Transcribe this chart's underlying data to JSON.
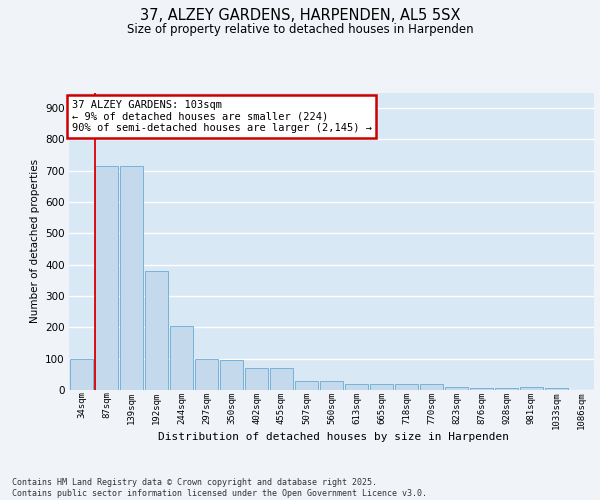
{
  "title_line1": "37, ALZEY GARDENS, HARPENDEN, AL5 5SX",
  "title_line2": "Size of property relative to detached houses in Harpenden",
  "xlabel": "Distribution of detached houses by size in Harpenden",
  "ylabel": "Number of detached properties",
  "categories": [
    "34sqm",
    "87sqm",
    "139sqm",
    "192sqm",
    "244sqm",
    "297sqm",
    "350sqm",
    "402sqm",
    "455sqm",
    "507sqm",
    "560sqm",
    "613sqm",
    "665sqm",
    "718sqm",
    "770sqm",
    "823sqm",
    "876sqm",
    "928sqm",
    "981sqm",
    "1033sqm",
    "1086sqm"
  ],
  "values": [
    100,
    715,
    715,
    380,
    205,
    100,
    97,
    70,
    70,
    30,
    30,
    20,
    20,
    18,
    18,
    10,
    7,
    7,
    10,
    5,
    0
  ],
  "bar_color": "#c5d9ed",
  "bar_edge_color": "#6aaad4",
  "red_line_x": 0.595,
  "annotation_text": "37 ALZEY GARDENS: 103sqm\n← 9% of detached houses are smaller (224)\n90% of semi-detached houses are larger (2,145) →",
  "annotation_box_facecolor": "#ffffff",
  "annotation_box_edgecolor": "#cc0000",
  "footer_text": "Contains HM Land Registry data © Crown copyright and database right 2025.\nContains public sector information licensed under the Open Government Licence v3.0.",
  "fig_facecolor": "#f0f4f8",
  "plot_facecolor": "#d8e8f4",
  "ylim": [
    0,
    950
  ],
  "yticks": [
    0,
    100,
    200,
    300,
    400,
    500,
    600,
    700,
    800,
    900
  ]
}
